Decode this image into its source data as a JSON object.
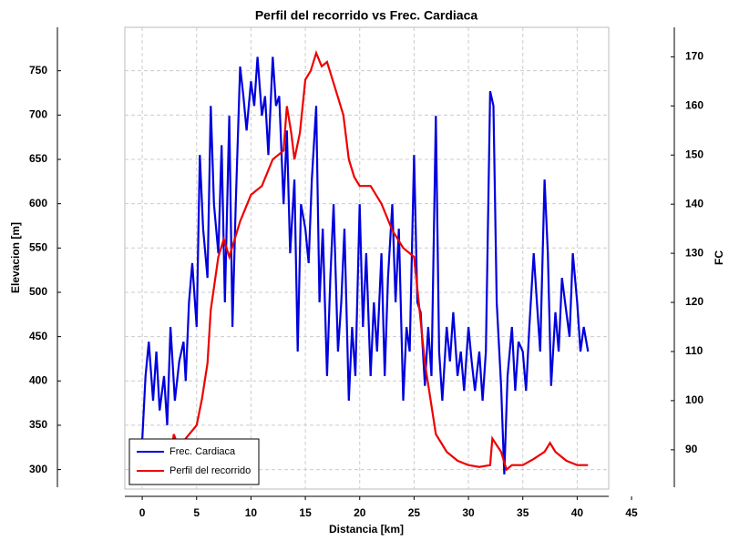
{
  "chart_data": {
    "type": "line",
    "title": "Perfil del recorrido vs Frec. Cardiaca",
    "x_label": "Distancia [km]",
    "y_label": "Elevacion [m]",
    "y2_label": "FC",
    "xlim": [
      -1.6,
      42.9
    ],
    "xticks": [
      0,
      5,
      10,
      15,
      20,
      25,
      30,
      35,
      40,
      45
    ],
    "ylim": [
      278,
      799
    ],
    "yticks": [
      300,
      350,
      400,
      450,
      500,
      550,
      600,
      650,
      700,
      750
    ],
    "y2lim": [
      82,
      176
    ],
    "y2ticks": [
      90,
      100,
      110,
      120,
      130,
      140,
      150,
      160,
      170
    ],
    "grid": true,
    "legend": "lower left",
    "series": [
      {
        "name": "Frec. Cardiaca",
        "color": "#0000dd",
        "axis": "y2",
        "x": [
          0,
          0.3,
          0.6,
          1,
          1.3,
          1.6,
          2,
          2.3,
          2.6,
          3,
          3.4,
          3.8,
          4,
          4.3,
          4.6,
          5,
          5.3,
          5.6,
          6,
          6.3,
          6.6,
          7,
          7.3,
          7.6,
          8,
          8.3,
          8.6,
          9,
          9.3,
          9.6,
          10,
          10.3,
          10.6,
          11,
          11.3,
          11.6,
          12,
          12.3,
          12.6,
          13,
          13.3,
          13.6,
          14,
          14.3,
          14.6,
          15,
          15.3,
          15.6,
          16,
          16.3,
          16.6,
          17,
          17.3,
          17.6,
          18,
          18.3,
          18.6,
          19,
          19.3,
          19.6,
          20,
          20.3,
          20.6,
          21,
          21.3,
          21.6,
          22,
          22.3,
          22.6,
          23,
          23.3,
          23.6,
          24,
          24.3,
          24.6,
          25,
          25.3,
          25.6,
          26,
          26.3,
          26.6,
          27,
          27.3,
          27.6,
          28,
          28.3,
          28.6,
          29,
          29.3,
          29.6,
          30,
          30.3,
          30.6,
          31,
          31.3,
          31.6,
          32,
          32.3,
          32.6,
          33,
          33.3,
          33.6,
          34,
          34.3,
          34.6,
          35,
          35.3,
          35.6,
          36,
          36.3,
          36.6,
          37,
          37.3,
          37.6,
          38,
          38.3,
          38.6,
          39,
          39.3,
          39.6,
          40,
          40.3,
          40.6,
          41
        ],
        "values": [
          92,
          105,
          112,
          100,
          110,
          98,
          105,
          95,
          115,
          100,
          108,
          112,
          104,
          120,
          128,
          115,
          150,
          135,
          125,
          160,
          140,
          130,
          152,
          120,
          158,
          115,
          140,
          168,
          162,
          155,
          165,
          160,
          170,
          158,
          162,
          150,
          170,
          160,
          162,
          140,
          155,
          130,
          145,
          110,
          140,
          135,
          128,
          145,
          160,
          120,
          135,
          105,
          125,
          140,
          110,
          120,
          135,
          100,
          115,
          105,
          140,
          115,
          130,
          105,
          120,
          110,
          130,
          105,
          125,
          140,
          120,
          135,
          100,
          115,
          110,
          150,
          120,
          118,
          103,
          115,
          105,
          158,
          110,
          100,
          115,
          108,
          118,
          105,
          110,
          102,
          115,
          108,
          102,
          110,
          100,
          110,
          163,
          160,
          120,
          103,
          85,
          105,
          115,
          102,
          112,
          110,
          102,
          115,
          130,
          120,
          110,
          145,
          130,
          103,
          118,
          110,
          125,
          118,
          113,
          130,
          120,
          110,
          115,
          110
        ]
      },
      {
        "name": "Perfil del recorrido",
        "color": "#ee0000",
        "axis": "y",
        "x": [
          2.5,
          2.9,
          3.5,
          4,
          5,
          5.5,
          6,
          6.3,
          7,
          7.5,
          8,
          9,
          10,
          11,
          12,
          13,
          13.3,
          13.7,
          14,
          14.5,
          15,
          15.5,
          16,
          16.5,
          17,
          17.5,
          18,
          18.5,
          19,
          19.5,
          20,
          21,
          22,
          23,
          24,
          25,
          25.5,
          26,
          26.5,
          27,
          28,
          29,
          30,
          31,
          32,
          32.2,
          33,
          33.5,
          34,
          35,
          36,
          37,
          37.5,
          38,
          39,
          40,
          41
        ],
        "values": [
          300,
          340,
          320,
          335,
          350,
          380,
          420,
          480,
          540,
          560,
          540,
          580,
          610,
          620,
          650,
          660,
          710,
          680,
          650,
          680,
          740,
          750,
          770,
          755,
          760,
          740,
          720,
          700,
          650,
          630,
          620,
          620,
          600,
          570,
          550,
          540,
          480,
          420,
          380,
          340,
          320,
          310,
          305,
          303,
          305,
          335,
          320,
          300,
          305,
          305,
          312,
          320,
          330,
          320,
          310,
          305,
          305
        ]
      }
    ]
  }
}
